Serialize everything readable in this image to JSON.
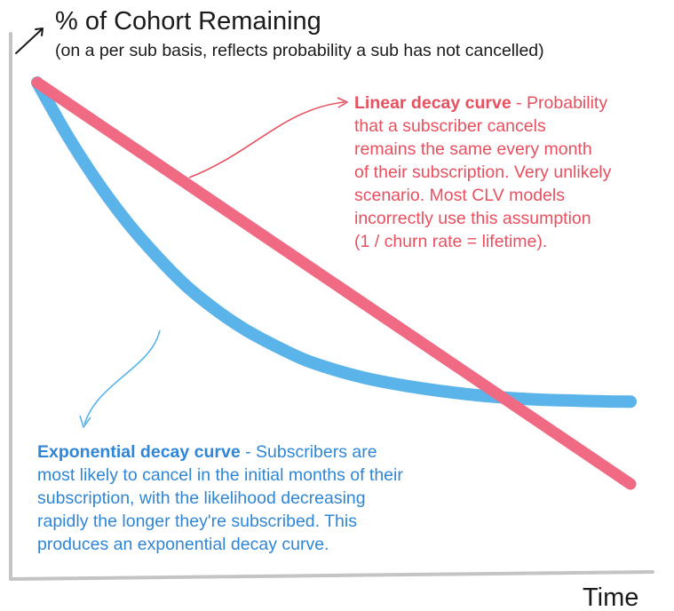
{
  "chart_data": {
    "type": "line",
    "title": "% of Cohort Remaining",
    "subtitle": "(on a per sub basis, reflects probability a sub has not cancelled)",
    "xlabel": "Time",
    "ylabel": "",
    "ylim": [
      0,
      100
    ],
    "xlim": [
      0,
      100
    ],
    "grid": false,
    "series": [
      {
        "name": "Linear decay curve",
        "color": "#f06a84",
        "x": [
          0,
          100
        ],
        "y": [
          100,
          0
        ]
      },
      {
        "name": "Exponential decay curve",
        "color": "#5ab4ea",
        "x": [
          0,
          5,
          10,
          15,
          20,
          25,
          30,
          35,
          40,
          45,
          50,
          55,
          60,
          65,
          70,
          75,
          80,
          85,
          90,
          95,
          100
        ],
        "y": [
          100,
          87,
          75.5,
          65.5,
          57,
          49.5,
          43.5,
          38.5,
          34.5,
          31,
          28.5,
          26.5,
          25,
          23.8,
          22.8,
          22,
          21.4,
          21,
          20.8,
          20.6,
          20.5
        ]
      }
    ],
    "annotations": [
      {
        "series": "Linear decay curve",
        "color": "#e8505f",
        "title": "Linear decay curve",
        "separator": " - ",
        "lines": [
          "Probability",
          "that a subscriber cancels",
          "remains the same every month",
          "of their subscription. Very unlikely",
          "scenario. Most CLV models",
          "incorrectly use this assumption",
          "(1 / churn rate = lifetime)."
        ]
      },
      {
        "series": "Exponential decay curve",
        "color": "#2f86d6",
        "title": "Exponential decay curve",
        "separator": " - ",
        "lines": [
          "Subscribers are",
          "most likely to cancel in the initial months of their",
          "subscription, with the likelihood decreasing",
          "rapidly the longer they're subscribed. This",
          "produces an exponential decay curve."
        ]
      }
    ]
  }
}
